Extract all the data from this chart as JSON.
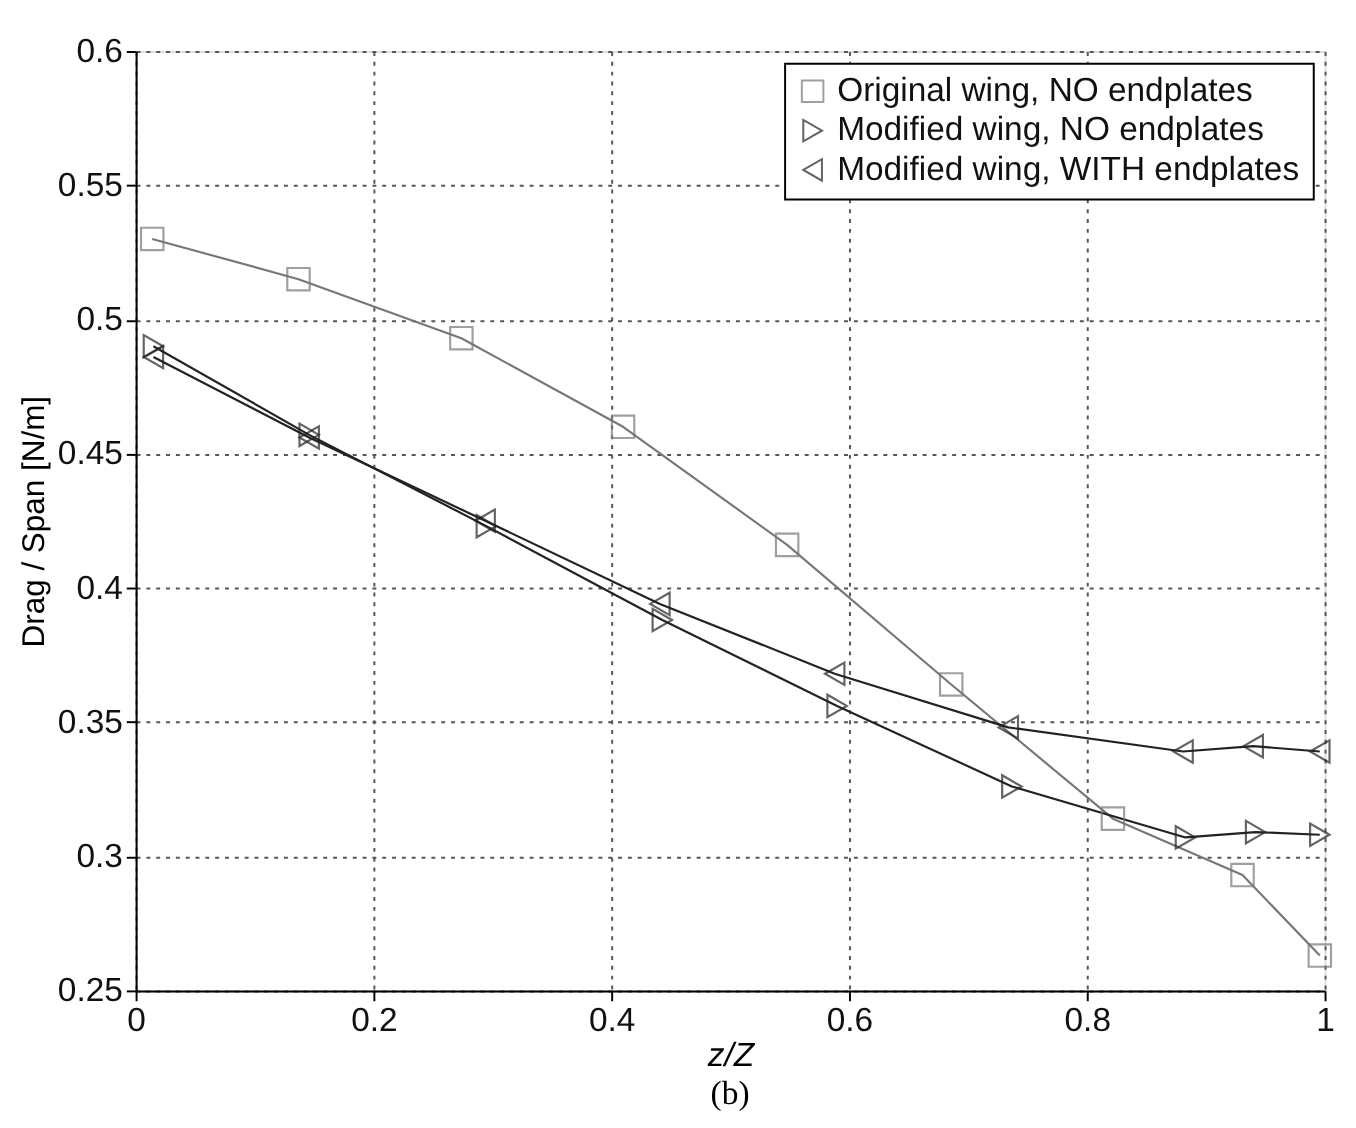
{
  "chart_data": {
    "type": "line",
    "xlabel": "z/Z",
    "ylabel": "Drag / Span  [N/m]",
    "annotations": [
      "(b)"
    ],
    "xlim": [
      0,
      1
    ],
    "xticks": [
      0,
      0.2,
      0.4,
      0.6,
      0.8,
      1
    ],
    "ylim": [
      0.25,
      0.6
    ],
    "yticks": [
      0.25,
      0.3,
      0.35,
      0.4,
      0.45,
      0.5,
      0.55,
      0.6
    ],
    "grid": true,
    "legend": "top right",
    "line_style": "solid",
    "series": [
      {
        "name": "Original wing, NO endplates",
        "color": "#777777",
        "marker": "square",
        "x": [
          0.014,
          0.137,
          0.274,
          0.41,
          0.548,
          0.686,
          0.822,
          0.931,
          0.996
        ],
        "values": [
          0.53,
          0.515,
          0.493,
          0.46,
          0.416,
          0.364,
          0.314,
          0.293,
          0.263
        ]
      },
      {
        "name": "Modified wing, NO endplates",
        "color": "#222222",
        "marker": "triangle-right",
        "x": [
          0.015,
          0.146,
          0.295,
          0.443,
          0.59,
          0.737,
          0.883,
          0.942,
          0.996
        ],
        "values": [
          0.49,
          0.457,
          0.423,
          0.388,
          0.356,
          0.326,
          0.307,
          0.309,
          0.308
        ]
      },
      {
        "name": "Modified wing, WITH endplates",
        "color": "#222222",
        "marker": "triangle-left",
        "x": [
          0.015,
          0.146,
          0.294,
          0.441,
          0.588,
          0.734,
          0.881,
          0.94,
          0.996
        ],
        "values": [
          0.486,
          0.456,
          0.425,
          0.394,
          0.368,
          0.348,
          0.339,
          0.341,
          0.339
        ]
      }
    ]
  }
}
